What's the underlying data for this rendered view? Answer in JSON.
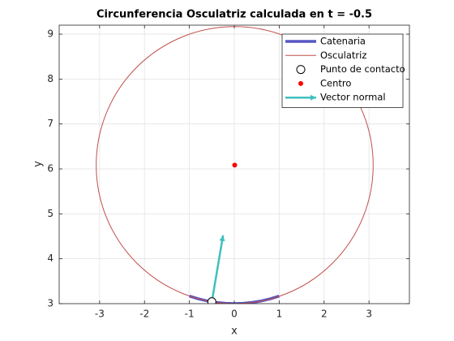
{
  "chart_data": {
    "type": "osculating",
    "title": "Circunferencia Osculatriz calculada en t = -0.5",
    "xlabel": "x",
    "ylabel": "y",
    "xlim": [
      -3.9,
      3.9
    ],
    "ylim": [
      3,
      9.2
    ],
    "xticks": [
      -3,
      -2,
      -1,
      0,
      1,
      2,
      3
    ],
    "yticks": [
      3,
      4,
      5,
      6,
      7,
      8,
      9
    ],
    "grid": true,
    "legend": "northeast",
    "series": [
      {
        "name": "Catenaria",
        "type": "line",
        "color": "#5656c4",
        "x": [
          -1,
          -0.8,
          -0.6,
          -0.4,
          -0.2,
          0,
          0.2,
          0.4,
          0.6,
          0.8,
          1
        ],
        "y": [
          3.168,
          3.107,
          3.06,
          3.027,
          3.007,
          3,
          3.007,
          3.027,
          3.06,
          3.107,
          3.168
        ]
      },
      {
        "name": "Osculatriz",
        "type": "circle",
        "color": "#c0504d",
        "center": [
          0.009,
          6.084
        ],
        "radius": 3.084
      },
      {
        "name": "Punto de contacto",
        "type": "marker",
        "color": "#000000",
        "x": -0.5,
        "y": 3.042
      },
      {
        "name": "Centro",
        "type": "dot",
        "color": "#ff0000",
        "x": 0.009,
        "y": 6.084
      },
      {
        "name": "Vector normal",
        "type": "arrow",
        "color": "#40bfbf",
        "x": -0.5,
        "y": 3.042,
        "u": 0.25,
        "v": 1.48
      }
    ]
  }
}
